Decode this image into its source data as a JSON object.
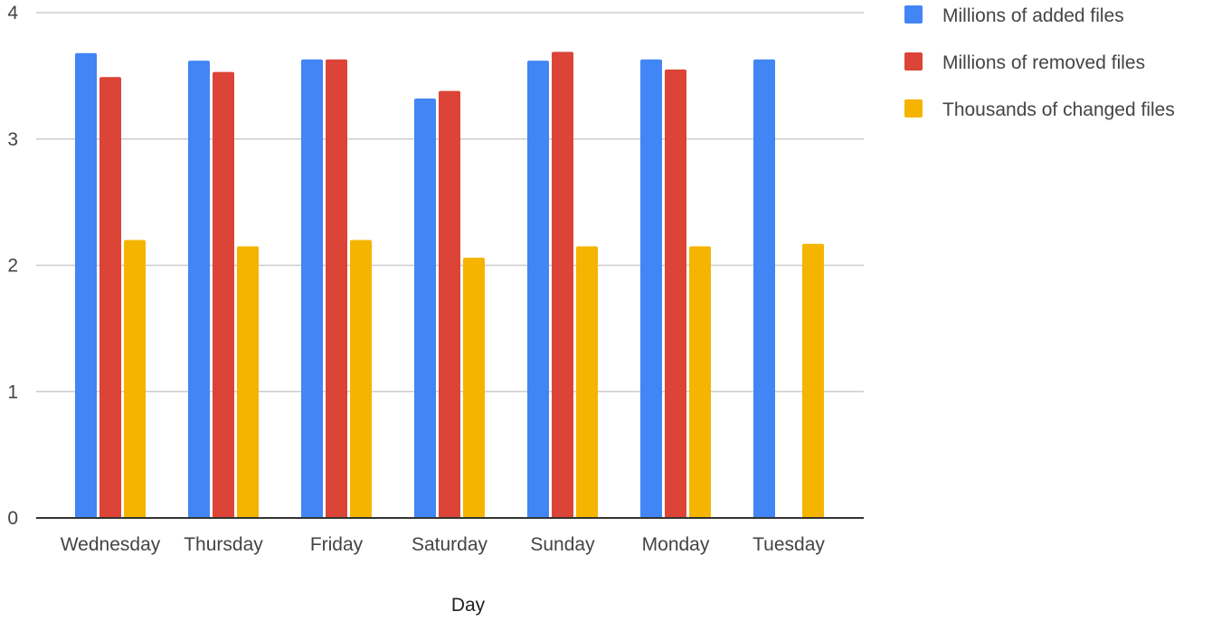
{
  "chart_data": {
    "type": "bar",
    "xlabel": "Day",
    "ylabel": "",
    "ylim": [
      0,
      4
    ],
    "yticks": [
      0,
      1,
      2,
      3,
      4
    ],
    "grid": true,
    "legend_position": "top-right",
    "categories": [
      "Wednesday",
      "Thursday",
      "Friday",
      "Saturday",
      "Sunday",
      "Monday",
      "Tuesday"
    ],
    "series": [
      {
        "name": "Millions of added files",
        "color": "#4285f4",
        "values": [
          3.68,
          3.62,
          3.63,
          3.32,
          3.62,
          3.63,
          3.63
        ]
      },
      {
        "name": "Millions of removed files",
        "color": "#db4437",
        "values": [
          3.49,
          3.53,
          3.63,
          3.38,
          3.69,
          3.55,
          0
        ]
      },
      {
        "name": "Thousands of changed files",
        "color": "#f4b400",
        "values": [
          2.2,
          2.15,
          2.2,
          2.06,
          2.15,
          2.15,
          2.17
        ]
      }
    ]
  }
}
